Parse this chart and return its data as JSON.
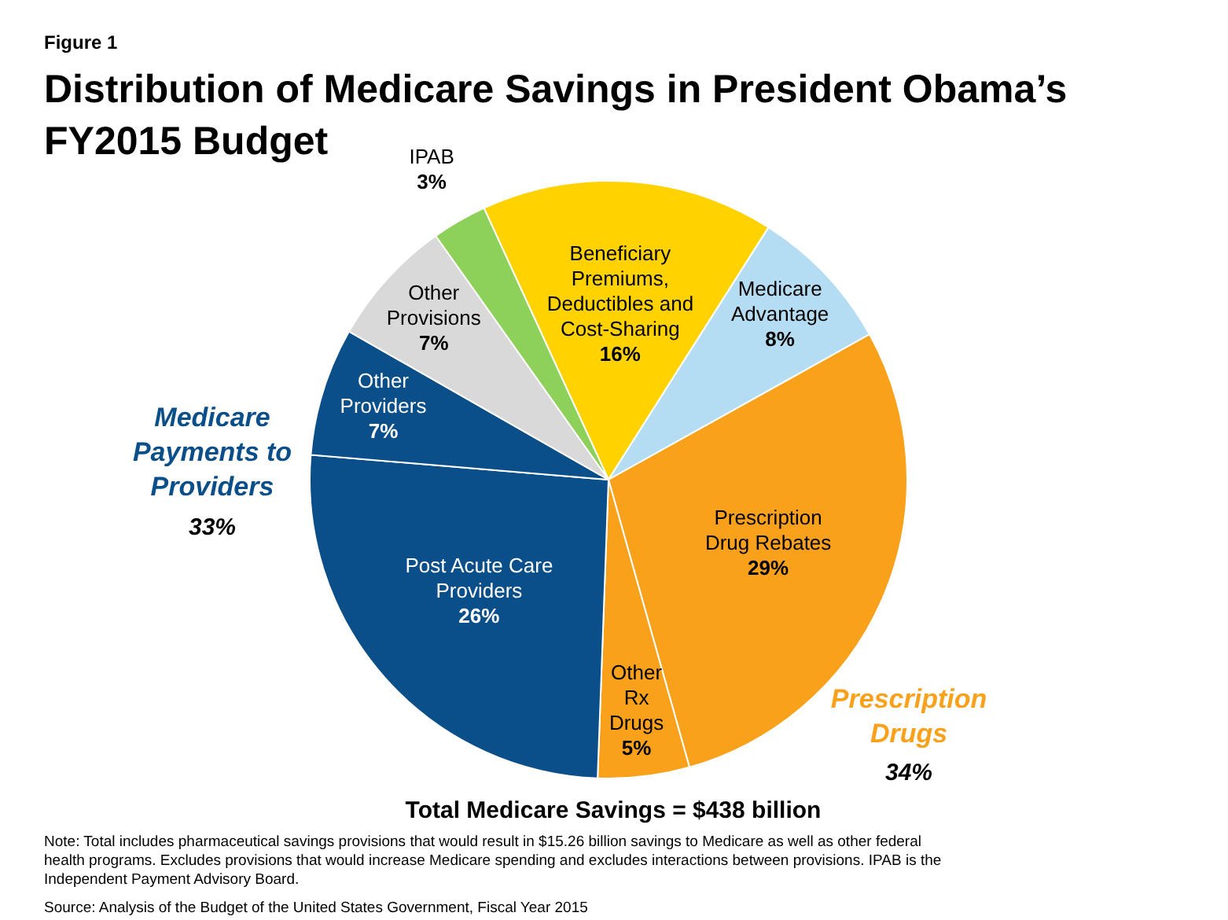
{
  "chart_data": {
    "type": "pie",
    "title": "Distribution of Medicare Savings in President Obama’s FY2015 Budget",
    "categories": [
      "Beneficiary Premiums, Deductibles and Cost-Sharing",
      "Medicare Advantage",
      "Prescription Drug Rebates",
      "Other Rx Drugs",
      "Post Acute Care Providers",
      "Other Providers",
      "Other Provisions",
      "IPAB"
    ],
    "values": [
      16,
      8,
      29,
      5,
      26,
      7,
      7,
      3
    ],
    "value_labels": [
      "16%",
      "8%",
      "29%",
      "5%",
      "26%",
      "7%",
      "7%",
      "3%"
    ],
    "colors": [
      "#ffd200",
      "#b4dcf2",
      "#f9a11b",
      "#f9a11b",
      "#0b4f8a",
      "#0b4f8a",
      "#d9d9d9",
      "#8dd05a"
    ],
    "annotations": [
      "Figure 1",
      "Medicare Payments to Providers",
      "33%",
      "Prescription Drugs",
      "34%",
      "Total Medicare Savings = $438 billion",
      "Note: Total includes pharmaceutical savings provisions that would result in $15.26 billion savings to Medicare as well as other federal health programs.  Excludes provisions that would increase Medicare spending and excludes interactions between provisions. IPAB is the Independent Payment Advisory Board.",
      "Source: Analysis of the Budget of the United States Government, Fiscal Year 2015"
    ]
  }
}
